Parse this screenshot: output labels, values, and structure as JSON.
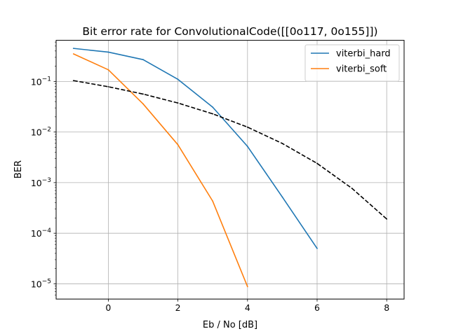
{
  "chart_data": {
    "type": "line",
    "title": "Bit error rate for ConvolutionalCode([[0o117, 0o155]])",
    "xlabel": "Eb / No [dB]",
    "ylabel": "BER",
    "xlim": [
      -1.5,
      8.5
    ],
    "ylim": [
      5e-06,
      0.65
    ],
    "yscale": "log",
    "grid": true,
    "legend_position": "top-right",
    "x_ticks": [
      0,
      2,
      4,
      6,
      8
    ],
    "x_tick_labels": [
      "0",
      "2",
      "4",
      "6",
      "8"
    ],
    "y_ticks": [
      1e-05,
      0.0001,
      0.001,
      0.01,
      0.1
    ],
    "y_tick_labels": [
      {
        "base": "10",
        "exp": "−5"
      },
      {
        "base": "10",
        "exp": "−4"
      },
      {
        "base": "10",
        "exp": "−3"
      },
      {
        "base": "10",
        "exp": "−2"
      },
      {
        "base": "10",
        "exp": "−1"
      }
    ],
    "series": [
      {
        "name": "viterbi_hard",
        "color": "#1f77b4",
        "dashed": false,
        "x": [
          -1,
          0,
          1,
          2,
          3,
          4,
          5,
          6
        ],
        "y": [
          0.45,
          0.38,
          0.27,
          0.11,
          0.031,
          0.0052,
          0.00052,
          5e-05
        ]
      },
      {
        "name": "viterbi_soft",
        "color": "#ff7f0e",
        "dashed": false,
        "x": [
          -1,
          0,
          1,
          2,
          3,
          4
        ],
        "y": [
          0.35,
          0.17,
          0.036,
          0.0056,
          0.00043,
          8.8e-06
        ]
      },
      {
        "color": "#000000",
        "dashed": true,
        "x": [
          -1,
          0,
          1,
          2,
          3,
          4,
          5,
          6,
          7,
          8
        ],
        "y": [
          0.104,
          0.0786,
          0.0563,
          0.0375,
          0.0229,
          0.0125,
          0.00595,
          0.0024,
          0.000773,
          0.000191
        ]
      }
    ]
  }
}
